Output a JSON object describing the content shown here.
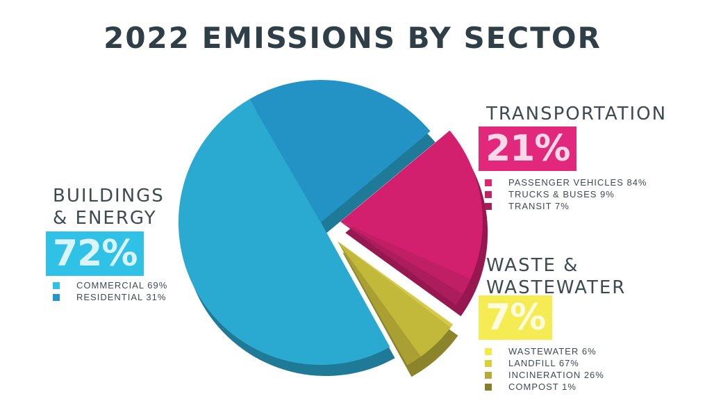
{
  "title": "2022 EMISSIONS BY SECTOR",
  "sectors": {
    "buildings": {
      "label_line1": "BUILDINGS",
      "label_line2": "& ENERGY",
      "percent": "72%",
      "color": "#2fc1e6",
      "legend": [
        {
          "label": "COMMERCIAL 69%",
          "color": "#2fc1e6"
        },
        {
          "label": "RESIDENTIAL 31%",
          "color": "#2596cc"
        }
      ]
    },
    "transportation": {
      "label_line1": "TRANSPORTATION",
      "percent": "21%",
      "color": "#e2287c",
      "legend": [
        {
          "label": "PASSENGER VEHICLES 84%",
          "color": "#e0246f"
        },
        {
          "label": "TRUCKS & BUSES 9%",
          "color": "#c42267"
        },
        {
          "label": "TRANSIT 7%",
          "color": "#a21e58"
        }
      ]
    },
    "waste": {
      "label_line1": "WASTE &",
      "label_line2": "WASTEWATER",
      "percent": "7%",
      "color": "#f4ec52",
      "legend": [
        {
          "label": "WASTEWATER 6%",
          "color": "#f3ea48"
        },
        {
          "label": "LANDFILL 67%",
          "color": "#d9cf3e"
        },
        {
          "label": "INCINERATION 26%",
          "color": "#b5ab35"
        },
        {
          "label": "COMPOST 1%",
          "color": "#857d27"
        }
      ]
    }
  },
  "chart_data": {
    "type": "pie",
    "title": "2022 EMISSIONS BY SECTOR",
    "slices": [
      {
        "name": "BUILDINGS & ENERGY",
        "value": 72,
        "color": "#2aaad0",
        "sub": [
          {
            "name": "COMMERCIAL",
            "value": 69,
            "color": "#2aaad0"
          },
          {
            "name": "RESIDENTIAL",
            "value": 31,
            "color": "#2293c4"
          }
        ]
      },
      {
        "name": "TRANSPORTATION",
        "value": 21,
        "color": "#d2206f",
        "sub": [
          {
            "name": "PASSENGER VEHICLES",
            "value": 84,
            "color": "#d2206f"
          },
          {
            "name": "TRUCKS & BUSES",
            "value": 9,
            "color": "#c01f66"
          },
          {
            "name": "TRANSIT",
            "value": 7,
            "color": "#ab1d5c"
          }
        ]
      },
      {
        "name": "WASTE & WASTEWATER",
        "value": 7,
        "color": "#c2b83a",
        "sub": [
          {
            "name": "WASTEWATER",
            "value": 6,
            "color": "#d4ca45"
          },
          {
            "name": "LANDFILL",
            "value": 67,
            "color": "#c2b83a"
          },
          {
            "name": "INCINERATION",
            "value": 26,
            "color": "#a99f32"
          },
          {
            "name": "COMPOST",
            "value": 1,
            "color": "#857d27"
          }
        ]
      }
    ],
    "exploded": [
      "TRANSPORTATION",
      "WASTE & WASTEWATER"
    ],
    "style": "3d"
  }
}
